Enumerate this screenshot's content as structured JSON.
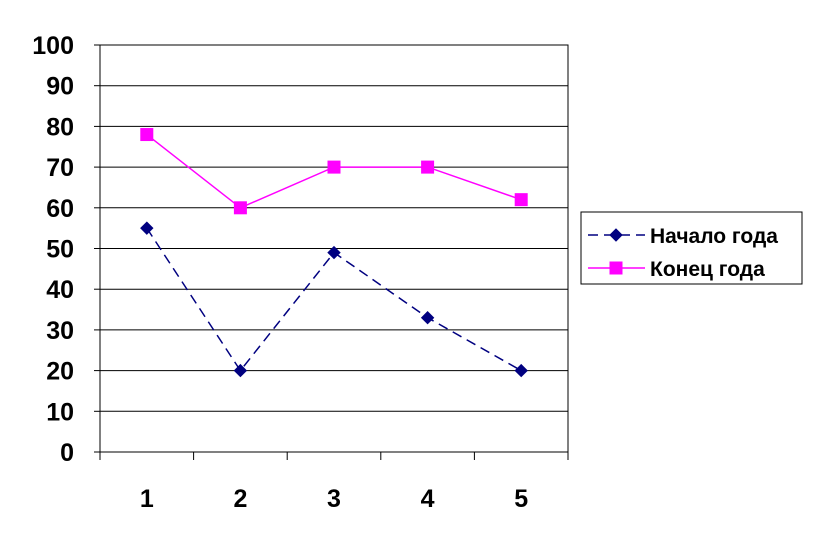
{
  "chart_data": {
    "type": "line",
    "title": "",
    "xlabel": "",
    "ylabel": "",
    "categories": [
      "1",
      "2",
      "3",
      "4",
      "5"
    ],
    "ylim": [
      0,
      100
    ],
    "yticks": [
      "0",
      "10",
      "20",
      "30",
      "40",
      "50",
      "60",
      "70",
      "80",
      "90",
      "100"
    ],
    "grid": "horizontal",
    "legend_position": "right",
    "series": [
      {
        "name": "Начало года",
        "values": [
          55,
          20,
          49,
          33,
          20
        ],
        "color": "#000080",
        "line_style": "dashed",
        "marker": "diamond"
      },
      {
        "name": "Конец года",
        "values": [
          78,
          60,
          70,
          70,
          62
        ],
        "color": "#FF00FF",
        "line_style": "solid",
        "marker": "square"
      }
    ]
  }
}
